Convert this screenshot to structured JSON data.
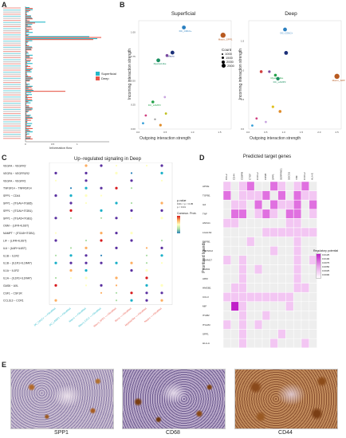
{
  "panels": {
    "A": {
      "label": "A",
      "legend": [
        "Superficial",
        "Deep"
      ],
      "xlabel": "Information flow",
      "colors": {
        "Superficial": "#25b8c8",
        "Deep": "#e8574a"
      }
    },
    "B": {
      "label": "B",
      "sub": [
        {
          "title": "Superficial",
          "xlabel": "Outgoing interaction strength",
          "ylabel": "Incoming interaction strength",
          "xticks": [
            "0.0",
            "0.5",
            "1.0",
            "1.5"
          ],
          "yticks": [
            "0.00",
            "0.25",
            "0.50",
            "0.75",
            "1.00"
          ],
          "points": [
            {
              "x": 0.83,
              "y": 1.05,
              "c": "#2a7fc0",
              "r": 2.4,
              "label": "DC_CD1C+"
            },
            {
              "x": 1.55,
              "y": 0.97,
              "c": "#b85a20",
              "r": 3.2,
              "label": "Macro_SPP1"
            },
            {
              "x": 0.62,
              "y": 0.79,
              "c": "#1b2f78",
              "r": 2.4,
              "label": "Macro"
            },
            {
              "x": 0.52,
              "y": 0.76,
              "c": "#7a4aa0",
              "r": 1.8,
              "label": ""
            },
            {
              "x": 0.36,
              "y": 0.71,
              "c": "#1a9060",
              "r": 2.4,
              "label": "Myeloid-like"
            },
            {
              "x": 0.48,
              "y": 0.33,
              "c": "#c9a6e0",
              "r": 1.4,
              "label": ""
            },
            {
              "x": 0.26,
              "y": 0.28,
              "c": "#26a24a",
              "r": 1.8,
              "label": "DC_LAMP3"
            },
            {
              "x": 0.5,
              "y": 0.16,
              "c": "#c0c020",
              "r": 1.4,
              "label": ""
            },
            {
              "x": 0.13,
              "y": 0.14,
              "c": "#d04080",
              "r": 1.4,
              "label": ""
            },
            {
              "x": 0.08,
              "y": 0.06,
              "c": "#38a0d8",
              "r": 1.4,
              "label": ""
            },
            {
              "x": 0.4,
              "y": 0.04,
              "c": "#e08c2a",
              "r": 1.6,
              "label": ""
            },
            {
              "x": 0.3,
              "y": 0.1,
              "c": "#a0a0a0",
              "r": 1.2,
              "label": ""
            }
          ]
        },
        {
          "title": "Deep",
          "xlabel": "Outgoing interaction strength",
          "ylabel": "Incoming interaction strength",
          "xticks": [
            "0.0",
            "0.5",
            "1.0",
            "1.5",
            "2.0",
            "2.5"
          ],
          "yticks": [
            "0.0",
            "0.5",
            "1.0",
            "1.5"
          ],
          "points": [
            {
              "x": 1.02,
              "y": 1.7,
              "c": "#2a7fc0",
              "r": 2.4,
              "label": "DC_CD1C+"
            },
            {
              "x": 1.05,
              "y": 1.3,
              "c": "#1b2f78",
              "r": 2.4,
              "label": ""
            },
            {
              "x": 2.48,
              "y": 0.9,
              "c": "#b85a20",
              "r": 3.2,
              "label": "Macro_SPP1"
            },
            {
              "x": 0.75,
              "y": 0.92,
              "c": "#26a24a",
              "r": 1.8,
              "label": "Myeloid-like"
            },
            {
              "x": 0.82,
              "y": 0.86,
              "c": "#1a9060",
              "r": 2.2,
              "label": "DC_LAMP3"
            },
            {
              "x": 0.35,
              "y": 0.98,
              "c": "#d04040",
              "r": 1.8,
              "label": ""
            },
            {
              "x": 0.58,
              "y": 0.98,
              "c": "#7a4aa0",
              "r": 1.6,
              "label": ""
            },
            {
              "x": 0.68,
              "y": 0.38,
              "c": "#e0c020",
              "r": 1.6,
              "label": ""
            },
            {
              "x": 0.88,
              "y": 0.3,
              "c": "#e08c2a",
              "r": 1.8,
              "label": ""
            },
            {
              "x": 0.22,
              "y": 0.18,
              "c": "#d04080",
              "r": 1.4,
              "label": ""
            },
            {
              "x": 0.1,
              "y": 0.06,
              "c": "#38a0d8",
              "r": 1.4,
              "label": ""
            },
            {
              "x": 0.48,
              "y": 0.12,
              "c": "#c9a6e0",
              "r": 1.4,
              "label": ""
            }
          ]
        }
      ],
      "legend_title": "Count",
      "legend_values": [
        "1000",
        "1500",
        "2000",
        "2500"
      ]
    },
    "C": {
      "label": "C",
      "title": "Up−regulated signaling in Deep",
      "rows": [
        "VEGFA − VEGFR2",
        "VEGFA − VEGFR1R2",
        "VEGFA − VEGFR1",
        "TNFSF14 − TNFRSF14",
        "SPP1 − CD44",
        "SPP1 − (ITGAV+ITGB5)",
        "SPP1 − (ITGAV+ITGB1)",
        "SPP1 − (ITGA5+ITGB1)",
        "OSM − (LIFR+IL6ST)",
        "NAMPT − (ITGA5+ITGB1)",
        "LIF − (LIFR+IL6ST)",
        "IL6 − (IL6R+IL6ST)",
        "IL1B − IL1R2",
        "IL1B − (IL1R1+IL1RAP)",
        "IL1A − IL1R2",
        "IL1A − (IL1R1+IL1RAP)",
        "GAS6 − AXL",
        "CSF1 − CSF1R",
        "CCL3L3 − CCR1"
      ],
      "cols": [
        "DC_CD1C+ −> Fibroblast",
        "DC_LAMP3 −> Fibroblast",
        "Macro −> Fibroblast",
        "Macro_CCL2 −> Fibroblast",
        "Macro_SPP1 −> Fibroblast",
        "Mono −> Fibroblast",
        "Myeloid-like −> Fibroblast",
        "Neutro −> Fibroblast"
      ],
      "legend_p": "p-value",
      "legend_p_vals": [
        "0.01 < p < 0.05",
        "p < 0.01"
      ],
      "legend_c": "Commun. Prob."
    },
    "D": {
      "label": "D",
      "title": "Predicted target genes",
      "ylabel": "Prioritized ligands",
      "cols": [
        "CCL2",
        "CD44",
        "CEBPB",
        "CTGF",
        "CXCL2",
        "FOSB",
        "SPP1",
        "SERPINE1",
        "SOCS3",
        "VIM",
        "CXCL2",
        "HLA-E"
      ],
      "rows": [
        "APOE",
        "TGFB1",
        "IL6",
        "TNF",
        "ANXA1",
        "LGALS3",
        "TGFB1",
        "TNFSF12",
        "ADAM17",
        "ICAM1",
        "ADM",
        "HMGB1",
        "CCL3",
        "MIF",
        "ITGB2",
        "ITGAM",
        "SPP1",
        "HLA-A"
      ],
      "legend_title": "Regulatory potential",
      "legend_vals": [
        "0.0125",
        "0.0100",
        "0.0075",
        "0.0050",
        "0.0025",
        "0.0000"
      ]
    },
    "E": {
      "label": "E",
      "captions": [
        "SPP1",
        "CD68",
        "CD44"
      ]
    }
  }
}
